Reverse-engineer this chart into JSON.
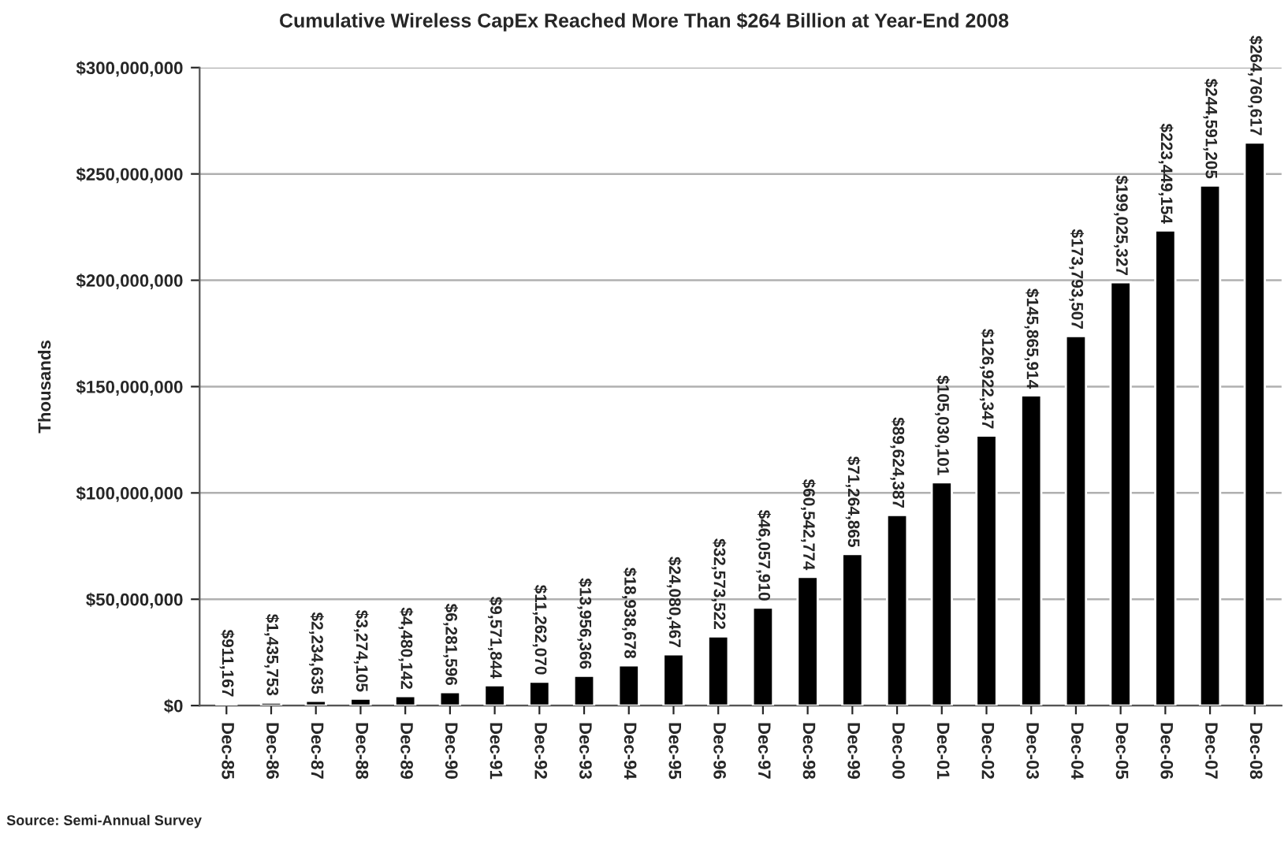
{
  "chart_data": {
    "type": "bar",
    "title": "Cumulative Wireless CapEx Reached More Than $264 Billion at Year-End 2008",
    "ylabel": "Thousands",
    "categories": [
      "Dec-85",
      "Dec-86",
      "Dec-87",
      "Dec-88",
      "Dec-89",
      "Dec-90",
      "Dec-91",
      "Dec-92",
      "Dec-93",
      "Dec-94",
      "Dec-95",
      "Dec-96",
      "Dec-97",
      "Dec-98",
      "Dec-99",
      "Dec-00",
      "Dec-01",
      "Dec-02",
      "Dec-03",
      "Dec-04",
      "Dec-05",
      "Dec-06",
      "Dec-07",
      "Dec-08"
    ],
    "series": [
      {
        "color": "#000000",
        "values": [
          911167,
          1435753,
          2234635,
          3274105,
          4480142,
          6281596,
          9571844,
          11262070,
          13956366,
          18938678,
          24080467,
          32573522,
          46057910,
          60542774,
          71264865,
          89624387,
          105030101,
          126922347,
          145865914,
          173793507,
          199025327,
          223449154,
          244591205,
          264760617
        ],
        "value_labels": [
          "$911,167",
          "$1,435,753",
          "$2,234,635",
          "$3,274,105",
          "$4,480,142",
          "$6,281,596",
          "$9,571,844",
          "$11,262,070",
          "$13,956,366",
          "$18,938,678",
          "$24,080,467",
          "$32,573,522",
          "$46,057,910",
          "$60,542,774",
          "$71,264,865",
          "$89,624,387",
          "$105,030,101",
          "$126,922,347",
          "$145,865,914",
          "$173,793,507",
          "$199,025,327",
          "$223,449,154",
          "$244,591,205",
          "$264,760,617"
        ]
      }
    ],
    "ylim": [
      0,
      300000000
    ],
    "yticks": [
      {
        "value": 0,
        "label": "$0"
      },
      {
        "value": 50000000,
        "label": "$50,000,000"
      },
      {
        "value": 100000000,
        "label": "$100,000,000"
      },
      {
        "value": 150000000,
        "label": "$150,000,000"
      },
      {
        "value": 200000000,
        "label": "$200,000,000"
      },
      {
        "value": 250000000,
        "label": "$250,000,000"
      },
      {
        "value": 300000000,
        "label": "$300,000,000"
      }
    ],
    "grid": "y",
    "annotations": [
      "Source: Semi-Annual Survey"
    ]
  }
}
